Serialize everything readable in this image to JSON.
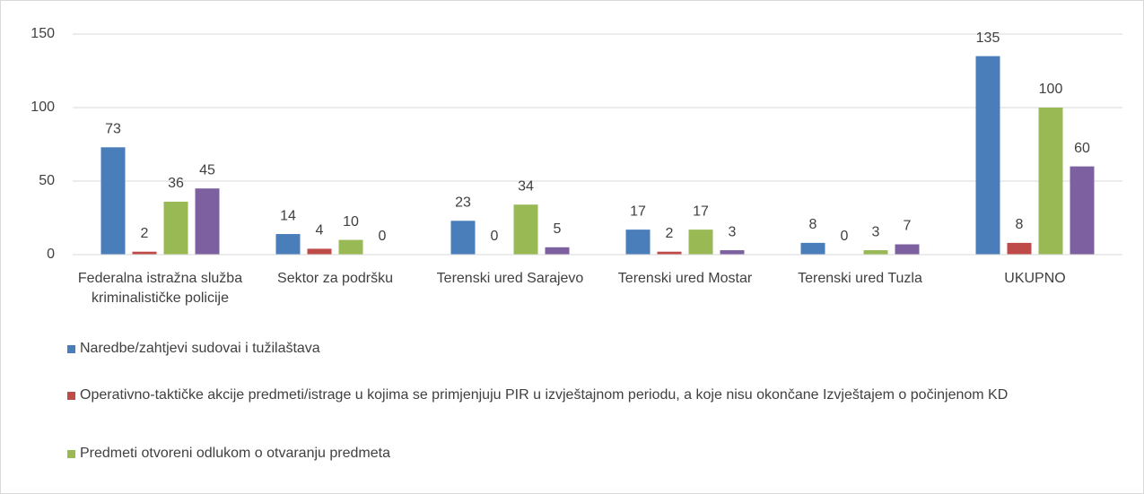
{
  "chart_data": {
    "type": "bar",
    "categories": [
      "Federalna istražna služba kriminalističke policije",
      "Sektor za podršku",
      "Terenski ured Sarajevo",
      "Terenski ured Mostar",
      "Terenski ured Tuzla",
      "UKUPNO"
    ],
    "series": [
      {
        "name": "Naredbe/zahtjevi sudovai i tužilaštava",
        "color": "#4a7ebb",
        "values": [
          73,
          14,
          23,
          17,
          8,
          135
        ]
      },
      {
        "name": "Operativno-taktičke akcije predmeti/istrage u kojima se primjenjuju PIR u  izvještajnom periodu, a koje nisu okončane Izvještajem o počinjenom KD",
        "color": "#be4b48",
        "values": [
          2,
          4,
          0,
          2,
          0,
          8
        ]
      },
      {
        "name": "Predmeti otvoreni odlukom o otvaranju predmeta",
        "color": "#98b954",
        "values": [
          36,
          10,
          34,
          17,
          3,
          100
        ]
      },
      {
        "color": "#7d60a0",
        "values": [
          45,
          0,
          5,
          3,
          7,
          60
        ]
      }
    ],
    "ylim": [
      0,
      150
    ],
    "yticks": [
      0,
      50,
      100,
      150
    ],
    "grid": true
  }
}
